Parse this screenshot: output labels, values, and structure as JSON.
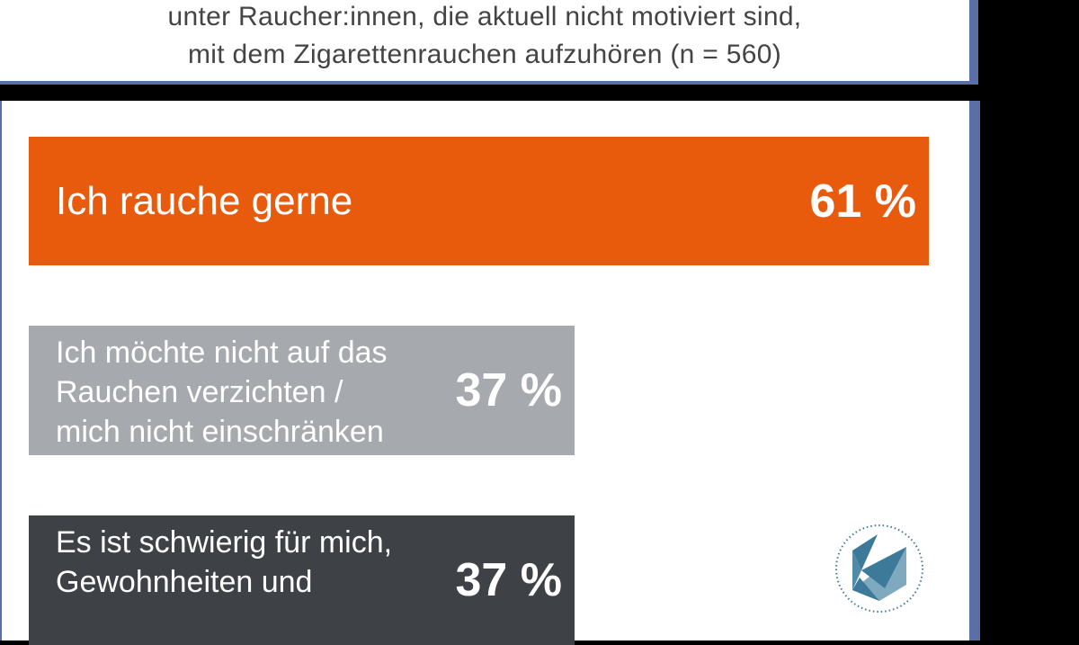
{
  "subtitle": {
    "line1": "unter Raucher:innen, die aktuell nicht motiviert sind,",
    "line2": "mit dem Zigarettenrauchen aufzuhören (n = 560)"
  },
  "chart_data": {
    "type": "bar",
    "orientation": "horizontal",
    "categories": [
      "Ich rauche gerne",
      "Ich möchte nicht auf das Rauchen verzichten / mich nicht einschränken",
      "Es ist schwierig für mich, Gewohnheiten und"
    ],
    "values": [
      61,
      37,
      37
    ],
    "value_labels": [
      "61 %",
      "37 %",
      "37 %"
    ],
    "label_lines": [
      [
        "Ich rauche gerne"
      ],
      [
        "Ich möchte nicht auf das",
        "Rauchen verzichten /",
        "mich nicht einschränken"
      ],
      [
        "Es ist schwierig für mich,",
        "Gewohnheiten und"
      ]
    ],
    "colors": [
      "#e85a0c",
      "#a6aaaf",
      "#3e4246"
    ],
    "xlim": [
      0,
      61
    ]
  },
  "logo": {
    "icon": "hexagon-bird-logo",
    "color": "#3d7a99"
  }
}
